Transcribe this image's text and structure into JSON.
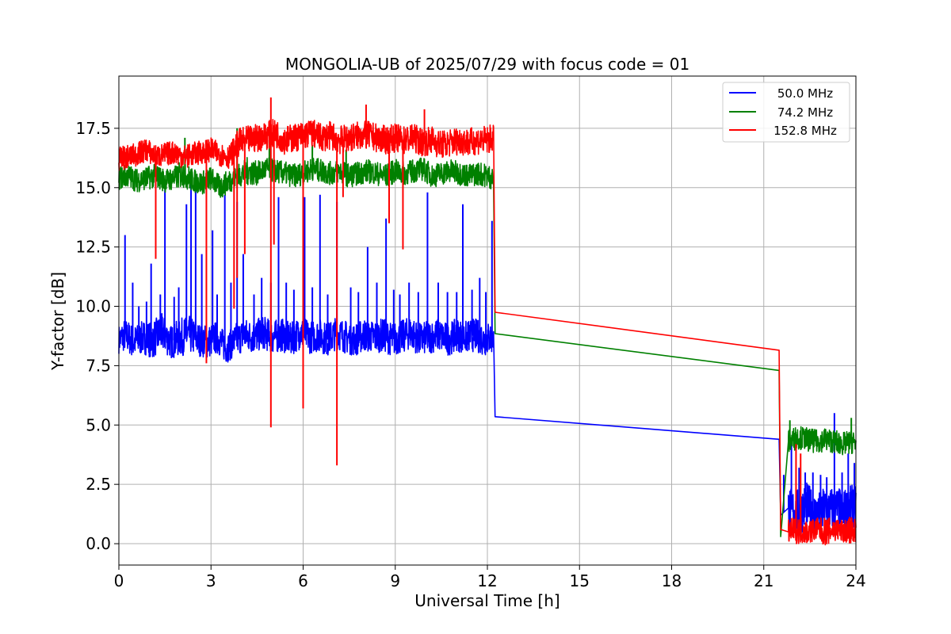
{
  "chart_data": {
    "type": "line",
    "title": "MONGOLIA-UB of 2025/07/29 with focus code = 01",
    "xlabel": "Universal Time [h]",
    "ylabel": "Y-factor [dB]",
    "xlim": [
      0,
      24
    ],
    "ylim": [
      -0.9,
      19.7
    ],
    "xticks": [
      0,
      3,
      6,
      9,
      12,
      15,
      18,
      21,
      24
    ],
    "yticks": [
      0.0,
      2.5,
      5.0,
      7.5,
      10.0,
      12.5,
      15.0,
      17.5
    ],
    "xtick_labels": [
      "0",
      "3",
      "6",
      "9",
      "12",
      "15",
      "18",
      "21",
      "24"
    ],
    "ytick_labels": [
      "0.0",
      "2.5",
      "5.0",
      "7.5",
      "10.0",
      "12.5",
      "15.0",
      "17.5"
    ],
    "grid": true,
    "legend_position": "top-right",
    "series": [
      {
        "name": "50.0 MHz",
        "color": "#0000ff",
        "x": [
          0.0,
          0.2,
          0.5,
          0.8,
          1.1,
          1.4,
          1.7,
          2.0,
          2.3,
          2.6,
          2.9,
          3.2,
          3.5,
          3.8,
          4.1,
          4.4,
          4.7,
          5.0,
          5.3,
          5.6,
          5.9,
          6.2,
          6.5,
          6.8,
          7.1,
          7.4,
          7.7,
          8.0,
          8.3,
          8.6,
          8.9,
          9.2,
          9.5,
          9.8,
          10.1,
          10.4,
          10.7,
          11.0,
          11.3,
          11.6,
          11.9,
          12.2,
          12.25,
          21.5,
          21.55,
          21.8,
          22.1,
          22.4,
          22.7,
          23.0,
          23.3,
          23.6,
          23.9,
          24.0
        ],
        "y": [
          8.6,
          8.8,
          8.5,
          8.7,
          8.6,
          8.9,
          8.5,
          8.7,
          8.8,
          8.6,
          8.5,
          8.7,
          8.2,
          8.6,
          8.8,
          8.7,
          8.9,
          8.7,
          8.8,
          8.6,
          8.9,
          8.7,
          8.8,
          8.6,
          8.9,
          8.7,
          8.6,
          8.8,
          8.7,
          8.8,
          8.6,
          8.7,
          8.9,
          8.6,
          8.7,
          8.8,
          8.6,
          8.8,
          8.7,
          8.8,
          8.6,
          8.7,
          5.35,
          4.4,
          1.2,
          1.5,
          1.3,
          1.6,
          1.2,
          1.4,
          1.5,
          1.3,
          1.6,
          1.5
        ],
        "band_spread": [
          0.6,
          0.7,
          0.7,
          0.7,
          0.8,
          0.8,
          0.7,
          0.8,
          0.8,
          0.7,
          0.7,
          0.7,
          0.6,
          0.7,
          0.7,
          0.7,
          0.7,
          0.7,
          0.7,
          0.7,
          0.7,
          0.7,
          0.7,
          0.7,
          0.7,
          0.7,
          0.7,
          0.7,
          0.7,
          0.7,
          0.7,
          0.7,
          0.7,
          0.7,
          0.7,
          0.7,
          0.7,
          0.7,
          0.7,
          0.7,
          0.7,
          0.7,
          0,
          0,
          0,
          0.9,
          1.0,
          1.0,
          0.9,
          1.0,
          0.9,
          1.0,
          0.9,
          0.9
        ],
        "spikes": [
          [
            0.2,
            13.0
          ],
          [
            0.45,
            11.0
          ],
          [
            0.65,
            10.0
          ],
          [
            0.9,
            10.2
          ],
          [
            1.05,
            11.8
          ],
          [
            1.35,
            10.5
          ],
          [
            1.5,
            14.9
          ],
          [
            1.8,
            10.4
          ],
          [
            1.95,
            10.8
          ],
          [
            2.2,
            14.3
          ],
          [
            2.35,
            15.5
          ],
          [
            2.5,
            15.2
          ],
          [
            2.7,
            12.2
          ],
          [
            3.05,
            13.2
          ],
          [
            3.2,
            10.5
          ],
          [
            3.45,
            14.7
          ],
          [
            3.65,
            11.0
          ],
          [
            3.85,
            14.4
          ],
          [
            4.05,
            12.2
          ],
          [
            4.4,
            10.5
          ],
          [
            4.65,
            11.2
          ],
          [
            4.95,
            11.0
          ],
          [
            5.2,
            14.6
          ],
          [
            5.45,
            11.0
          ],
          [
            5.7,
            10.7
          ],
          [
            6.05,
            14.6
          ],
          [
            6.3,
            10.8
          ],
          [
            6.55,
            14.7
          ],
          [
            6.8,
            10.5
          ],
          [
            7.1,
            14.4
          ],
          [
            7.55,
            10.8
          ],
          [
            7.8,
            10.6
          ],
          [
            8.1,
            12.5
          ],
          [
            8.4,
            11.0
          ],
          [
            8.7,
            13.7
          ],
          [
            8.95,
            10.7
          ],
          [
            9.15,
            10.5
          ],
          [
            9.45,
            11.0
          ],
          [
            9.75,
            10.6
          ],
          [
            10.05,
            14.8
          ],
          [
            10.4,
            11.0
          ],
          [
            10.7,
            10.6
          ],
          [
            11.0,
            10.6
          ],
          [
            11.2,
            14.3
          ],
          [
            11.5,
            10.7
          ],
          [
            11.75,
            11.2
          ],
          [
            11.95,
            10.6
          ],
          [
            12.15,
            13.6
          ],
          [
            21.65,
            2.9
          ],
          [
            21.9,
            4.2
          ],
          [
            22.15,
            3.2
          ],
          [
            22.35,
            3.0
          ],
          [
            22.6,
            3.0
          ],
          [
            22.85,
            2.9
          ],
          [
            23.05,
            2.8
          ],
          [
            23.3,
            5.5
          ],
          [
            23.55,
            3.0
          ],
          [
            23.75,
            3.8
          ],
          [
            23.95,
            3.4
          ]
        ]
      },
      {
        "name": "74.2 MHz",
        "color": "#008000",
        "x": [
          0.0,
          0.3,
          0.6,
          0.9,
          1.2,
          1.5,
          1.8,
          2.1,
          2.4,
          2.7,
          3.0,
          3.3,
          3.6,
          3.9,
          4.2,
          4.5,
          4.8,
          5.1,
          5.4,
          5.7,
          6.0,
          6.3,
          6.6,
          6.9,
          7.2,
          7.5,
          7.8,
          8.1,
          8.4,
          8.7,
          9.0,
          9.3,
          9.6,
          9.9,
          10.2,
          10.5,
          10.8,
          11.1,
          11.4,
          11.7,
          12.0,
          12.2,
          12.25,
          21.5,
          21.55,
          21.8,
          22.1,
          22.4,
          22.7,
          23.0,
          23.3,
          23.6,
          23.9,
          24.0
        ],
        "y": [
          15.4,
          15.5,
          15.3,
          15.4,
          15.5,
          15.3,
          15.4,
          15.6,
          15.3,
          15.2,
          15.4,
          15.0,
          15.3,
          15.5,
          15.7,
          15.6,
          15.8,
          15.7,
          15.6,
          15.5,
          15.6,
          15.8,
          15.7,
          15.6,
          15.7,
          15.5,
          15.6,
          15.7,
          15.6,
          15.5,
          15.7,
          15.6,
          15.7,
          15.8,
          15.5,
          15.6,
          15.7,
          15.6,
          15.5,
          15.6,
          15.5,
          15.4,
          8.85,
          7.3,
          0.3,
          4.3,
          4.5,
          4.4,
          4.3,
          4.4,
          4.3,
          4.2,
          4.3,
          4.2
        ],
        "band_spread": [
          0.5,
          0.5,
          0.5,
          0.5,
          0.5,
          0.5,
          0.5,
          0.6,
          0.5,
          0.5,
          0.5,
          0.5,
          0.5,
          0.5,
          0.6,
          0.5,
          0.5,
          0.5,
          0.5,
          0.5,
          0.5,
          0.5,
          0.5,
          0.5,
          0.5,
          0.5,
          0.5,
          0.5,
          0.5,
          0.5,
          0.5,
          0.5,
          0.5,
          0.5,
          0.5,
          0.5,
          0.5,
          0.5,
          0.5,
          0.5,
          0.5,
          0.5,
          0,
          0,
          0,
          0.5,
          0.5,
          0.5,
          0.5,
          0.5,
          0.5,
          0.5,
          0.5,
          0.5
        ],
        "spikes": [
          [
            2.15,
            17.1
          ],
          [
            3.85,
            17.5
          ],
          [
            4.9,
            17.0
          ],
          [
            6.3,
            16.8
          ],
          [
            7.4,
            16.6
          ],
          [
            21.85,
            5.2
          ],
          [
            23.85,
            5.3
          ]
        ]
      },
      {
        "name": "152.8 MHz",
        "color": "#ff0000",
        "x": [
          0.0,
          0.3,
          0.6,
          0.9,
          1.2,
          1.5,
          1.8,
          2.1,
          2.4,
          2.7,
          3.0,
          3.3,
          3.6,
          3.9,
          4.2,
          4.5,
          4.8,
          5.1,
          5.4,
          5.7,
          6.0,
          6.3,
          6.6,
          6.9,
          7.2,
          7.5,
          7.8,
          8.1,
          8.4,
          8.7,
          9.0,
          9.3,
          9.6,
          9.9,
          10.2,
          10.5,
          10.8,
          11.1,
          11.4,
          11.7,
          12.0,
          12.2,
          12.25,
          21.5,
          21.55,
          21.8,
          22.1,
          22.4,
          22.7,
          23.0,
          23.3,
          23.6,
          23.9,
          24.0
        ],
        "y": [
          16.2,
          16.3,
          16.4,
          16.6,
          16.3,
          16.4,
          16.5,
          16.3,
          16.4,
          16.5,
          16.6,
          16.4,
          16.3,
          16.9,
          17.0,
          17.1,
          17.2,
          17.3,
          17.0,
          17.1,
          17.2,
          17.3,
          17.1,
          17.2,
          17.0,
          17.1,
          17.2,
          17.2,
          17.1,
          17.0,
          17.1,
          17.0,
          17.1,
          16.9,
          17.0,
          16.8,
          16.9,
          17.0,
          16.9,
          17.0,
          17.0,
          17.1,
          9.75,
          8.15,
          0.6,
          0.5,
          0.6,
          0.5,
          0.6,
          0.5,
          0.6,
          0.5,
          0.6,
          0.5
        ],
        "band_spread": [
          0.5,
          0.5,
          0.5,
          0.5,
          0.5,
          0.5,
          0.5,
          0.5,
          0.5,
          0.5,
          0.5,
          0.5,
          0.5,
          0.6,
          0.6,
          0.6,
          0.6,
          0.6,
          0.6,
          0.6,
          0.6,
          0.6,
          0.6,
          0.6,
          0.6,
          0.6,
          0.6,
          0.6,
          0.6,
          0.6,
          0.6,
          0.6,
          0.6,
          0.6,
          0.6,
          0.6,
          0.6,
          0.6,
          0.6,
          0.6,
          0.6,
          0.6,
          0,
          0,
          0,
          0.5,
          0.6,
          0.5,
          0.5,
          0.6,
          0.5,
          0.5,
          0.6,
          0.5
        ],
        "dips": [
          [
            1.2,
            12.0
          ],
          [
            2.85,
            7.6
          ],
          [
            3.75,
            9.9
          ],
          [
            3.85,
            11.2
          ],
          [
            4.1,
            12.2
          ],
          [
            4.95,
            4.9
          ],
          [
            5.05,
            12.6
          ],
          [
            6.0,
            5.7
          ],
          [
            7.1,
            3.3
          ],
          [
            7.3,
            14.6
          ],
          [
            8.8,
            13.5
          ],
          [
            9.25,
            12.4
          ]
        ],
        "spikes": [
          [
            4.95,
            18.8
          ],
          [
            8.05,
            18.5
          ],
          [
            9.95,
            18.3
          ],
          [
            22.05,
            4.2
          ],
          [
            22.2,
            3.8
          ]
        ]
      }
    ]
  }
}
